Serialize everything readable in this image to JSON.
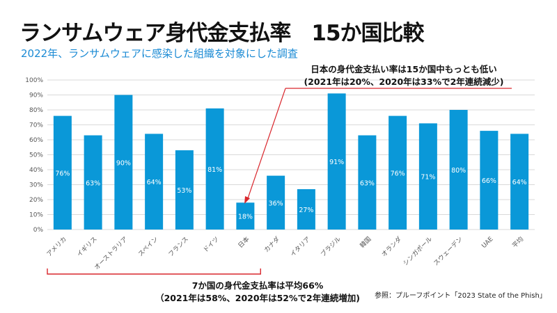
{
  "title": "ランサムウェア身代金支払率　15か国比較",
  "subtitle": "2022年、ランサムウェアに感染した組織を対象にした調査",
  "chart_data": {
    "type": "bar",
    "categories": [
      "アメリカ",
      "イギリス",
      "オーストラリア",
      "スペイン",
      "フランス",
      "ドイツ",
      "日本",
      "カナダ",
      "イタリア",
      "ブラジル",
      "韓国",
      "オランダ",
      "シンガポール",
      "スウェーデン",
      "UAE",
      "平均"
    ],
    "values": [
      76,
      63,
      90,
      64,
      53,
      81,
      18,
      36,
      27,
      91,
      63,
      76,
      71,
      80,
      66,
      64
    ],
    "data_labels": [
      "76%",
      "63%",
      "90%",
      "64%",
      "53%",
      "81%",
      "18%",
      "36%",
      "27%",
      "91%",
      "63%",
      "76%",
      "71%",
      "80%",
      "66%",
      "64%"
    ],
    "ylim": [
      0,
      100
    ],
    "yticks": [
      "0%",
      "10%",
      "20%",
      "30%",
      "40%",
      "50%",
      "60%",
      "70%",
      "80%",
      "90%",
      "100%"
    ],
    "grid": true,
    "bar_color": "#0a98d8",
    "annotation_color": "#d9262c"
  },
  "annotations": {
    "japan_line1": "日本の身代金支払い率は15か国中もっとも低い",
    "japan_line2": "(2021年は20%、2020年は33%で2年連続減少)",
    "group_line1": "7か国の身代金支払率は平均66%",
    "group_line2": "（2021年は58%、2020年は52%で2年連続増加)"
  },
  "source": "参照：プルーフポイント「2023 State of the Phish」"
}
